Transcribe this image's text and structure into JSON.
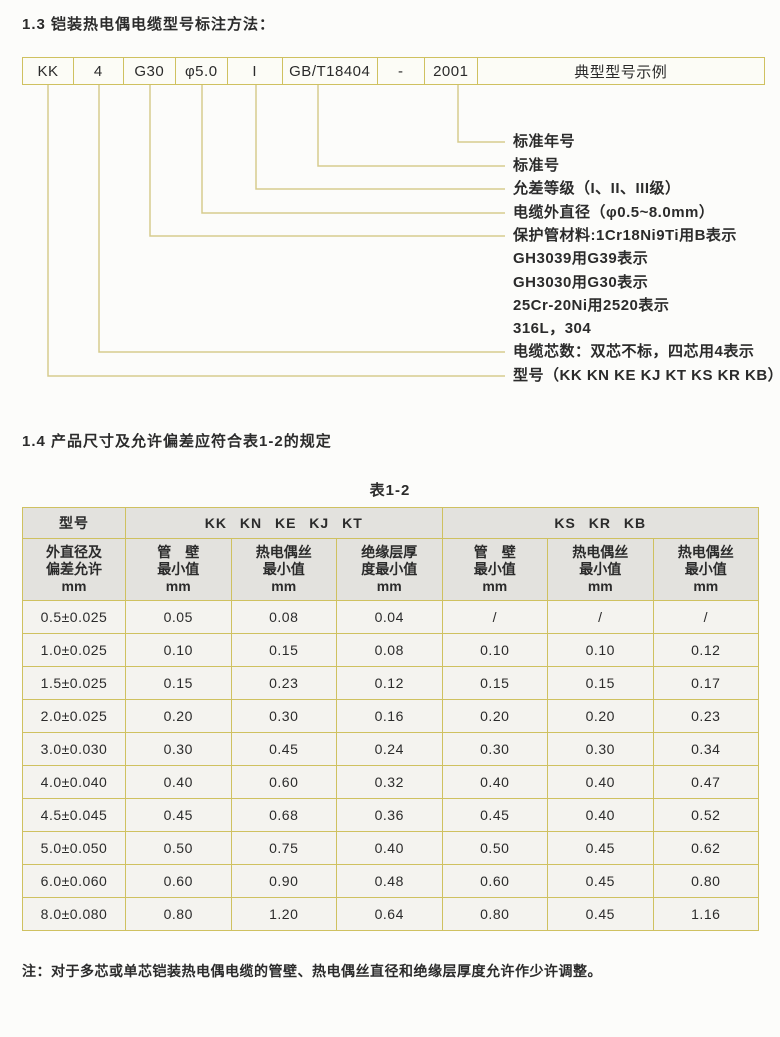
{
  "colors": {
    "box_border": "#cfc160",
    "connector_line": "#d6cb8e",
    "table_header_bg": "#e3e2de",
    "table_cell_bg": "#f4f3ef",
    "text": "#2b2b2b"
  },
  "section13": {
    "heading": "1.3 铠装热电偶电缆型号标注方法："
  },
  "diagram": {
    "boxes": [
      {
        "label": "KK"
      },
      {
        "label": "4"
      },
      {
        "label": "G30"
      },
      {
        "label": "φ5.0"
      },
      {
        "label": "I"
      },
      {
        "label": "GB/T18404"
      },
      {
        "label": "-"
      },
      {
        "label": "2001"
      },
      {
        "label": "典型型号示例"
      }
    ],
    "labels": [
      {
        "text": "标准年号"
      },
      {
        "text": "标准号"
      },
      {
        "text": "允差等级（I、II、III级）"
      },
      {
        "text": "电缆外直径（φ0.5~8.0mm）"
      },
      {
        "text": "保护管材料:1Cr18Ni9Ti用B表示"
      },
      {
        "text": "GH3039用G39表示"
      },
      {
        "text": "GH3030用G30表示"
      },
      {
        "text": "25Cr-20Ni用2520表示"
      },
      {
        "text": "316L，304"
      },
      {
        "text": "电缆芯数：双芯不标，四芯用4表示"
      },
      {
        "text": "型号（KK KN KE KJ KT KS KR KB）"
      }
    ]
  },
  "section14": {
    "heading": "1.4 产品尺寸及允许偏差应符合表1-2的规定"
  },
  "table": {
    "title": "表1-2",
    "header_row1": [
      "型号",
      "KK KN KE KJ KT",
      "KS KR KB"
    ],
    "header_row2": [
      "外直径及\n偏差允许\nmm",
      "管　壁\n最小值\nmm",
      "热电偶丝\n最小值\nmm",
      "绝缘层厚\n度最小值\nmm",
      "管　壁\n最小值\nmm",
      "热电偶丝\n最小值\nmm",
      "热电偶丝\n最小值\nmm"
    ],
    "rows": [
      [
        "0.5±0.025",
        "0.05",
        "0.08",
        "0.04",
        "/",
        "/",
        "/"
      ],
      [
        "1.0±0.025",
        "0.10",
        "0.15",
        "0.08",
        "0.10",
        "0.10",
        "0.12"
      ],
      [
        "1.5±0.025",
        "0.15",
        "0.23",
        "0.12",
        "0.15",
        "0.15",
        "0.17"
      ],
      [
        "2.0±0.025",
        "0.20",
        "0.30",
        "0.16",
        "0.20",
        "0.20",
        "0.23"
      ],
      [
        "3.0±0.030",
        "0.30",
        "0.45",
        "0.24",
        "0.30",
        "0.30",
        "0.34"
      ],
      [
        "4.0±0.040",
        "0.40",
        "0.60",
        "0.32",
        "0.40",
        "0.40",
        "0.47"
      ],
      [
        "4.5±0.045",
        "0.45",
        "0.68",
        "0.36",
        "0.45",
        "0.40",
        "0.52"
      ],
      [
        "5.0±0.050",
        "0.50",
        "0.75",
        "0.40",
        "0.50",
        "0.45",
        "0.62"
      ],
      [
        "6.0±0.060",
        "0.60",
        "0.90",
        "0.48",
        "0.60",
        "0.45",
        "0.80"
      ],
      [
        "8.0±0.080",
        "0.80",
        "1.20",
        "0.64",
        "0.80",
        "0.45",
        "1.16"
      ]
    ]
  },
  "note": "注：对于多芯或单芯铠装热电偶电缆的管壁、热电偶丝直径和绝缘层厚度允许作少许调整。"
}
